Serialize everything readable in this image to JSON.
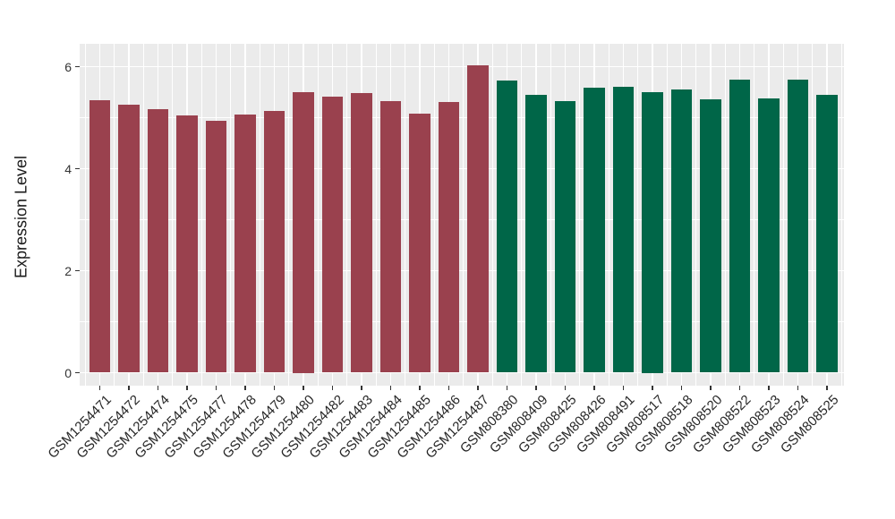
{
  "figure": {
    "background": "#FFFFFF",
    "panel_background": "#EBEBEB",
    "grid_color": "#FFFFFF",
    "tick_color": "#333333",
    "axis_text_color": "#262626"
  },
  "chart_data": {
    "type": "bar",
    "title": "",
    "xlabel": "",
    "ylabel": "Expression Level",
    "ylim": [
      0,
      6.45
    ],
    "yticks": [
      0,
      2,
      4,
      6
    ],
    "yticks_minor": [
      1,
      3,
      5
    ],
    "grid": "on",
    "legend": "none",
    "categories": [
      "GSM1254471",
      "GSM1254472",
      "GSM1254474",
      "GSM1254475",
      "GSM1254477",
      "GSM1254478",
      "GSM1254479",
      "GSM1254480",
      "GSM1254482",
      "GSM1254483",
      "GSM1254484",
      "GSM1254485",
      "GSM1254486",
      "GSM1254487",
      "GSM808380",
      "GSM808409",
      "GSM808425",
      "GSM808426",
      "GSM808491",
      "GSM808517",
      "GSM808518",
      "GSM808520",
      "GSM808522",
      "GSM808523",
      "GSM808524",
      "GSM808525"
    ],
    "values": [
      5.35,
      5.26,
      5.16,
      5.04,
      4.94,
      5.07,
      5.14,
      5.5,
      5.42,
      5.48,
      5.33,
      5.08,
      5.31,
      6.02,
      5.72,
      5.45,
      5.33,
      5.59,
      5.6,
      5.5,
      5.56,
      5.36,
      5.74,
      5.38,
      5.74,
      5.44
    ],
    "bar_colors": [
      "#9A414E",
      "#9A414E",
      "#9A414E",
      "#9A414E",
      "#9A414E",
      "#9A414E",
      "#9A414E",
      "#9A414E",
      "#9A414E",
      "#9A414E",
      "#9A414E",
      "#9A414E",
      "#9A414E",
      "#9A414E",
      "#006648",
      "#006648",
      "#006648",
      "#006648",
      "#006648",
      "#006648",
      "#006648",
      "#006648",
      "#006648",
      "#006648",
      "#006648",
      "#006648"
    ]
  }
}
